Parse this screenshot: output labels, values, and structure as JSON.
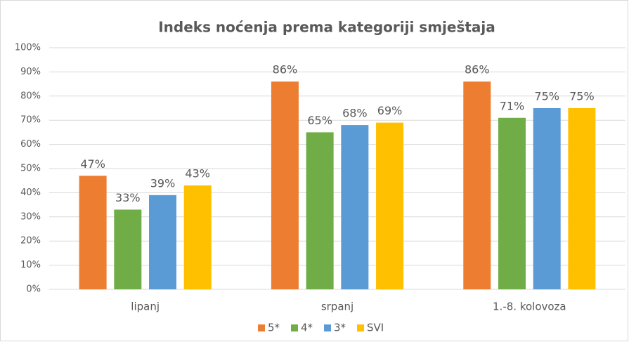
{
  "chart_data": {
    "type": "bar",
    "title": "Indeks noćenja prema kategoriji smještaja",
    "categories": [
      "lipanj",
      "srpanj",
      "1.-8. kolovoza"
    ],
    "series": [
      {
        "name": "5*",
        "color": "#ed7d31",
        "values": [
          47,
          86,
          86
        ],
        "value_labels": [
          "47%",
          "86%",
          "86%"
        ]
      },
      {
        "name": "4*",
        "color": "#70ad47",
        "values": [
          33,
          65,
          71
        ],
        "value_labels": [
          "33%",
          "65%",
          "71%"
        ]
      },
      {
        "name": "3*",
        "color": "#5b9bd5",
        "values": [
          39,
          68,
          75
        ],
        "value_labels": [
          "39%",
          "68%",
          "75%"
        ]
      },
      {
        "name": "SVI",
        "color": "#ffc000",
        "values": [
          43,
          69,
          75
        ],
        "value_labels": [
          "43%",
          "69%",
          "75%"
        ]
      }
    ],
    "ylim": [
      0,
      100
    ],
    "yticks": [
      {
        "value": 0,
        "label": "0%"
      },
      {
        "value": 10,
        "label": "10%"
      },
      {
        "value": 20,
        "label": "20%"
      },
      {
        "value": 30,
        "label": "30%"
      },
      {
        "value": 40,
        "label": "40%"
      },
      {
        "value": 50,
        "label": "50%"
      },
      {
        "value": 60,
        "label": "60%"
      },
      {
        "value": 70,
        "label": "70%"
      },
      {
        "value": 80,
        "label": "80%"
      },
      {
        "value": 90,
        "label": "90%"
      },
      {
        "value": 100,
        "label": "100%"
      }
    ],
    "grid": true,
    "legend": "bottom"
  }
}
